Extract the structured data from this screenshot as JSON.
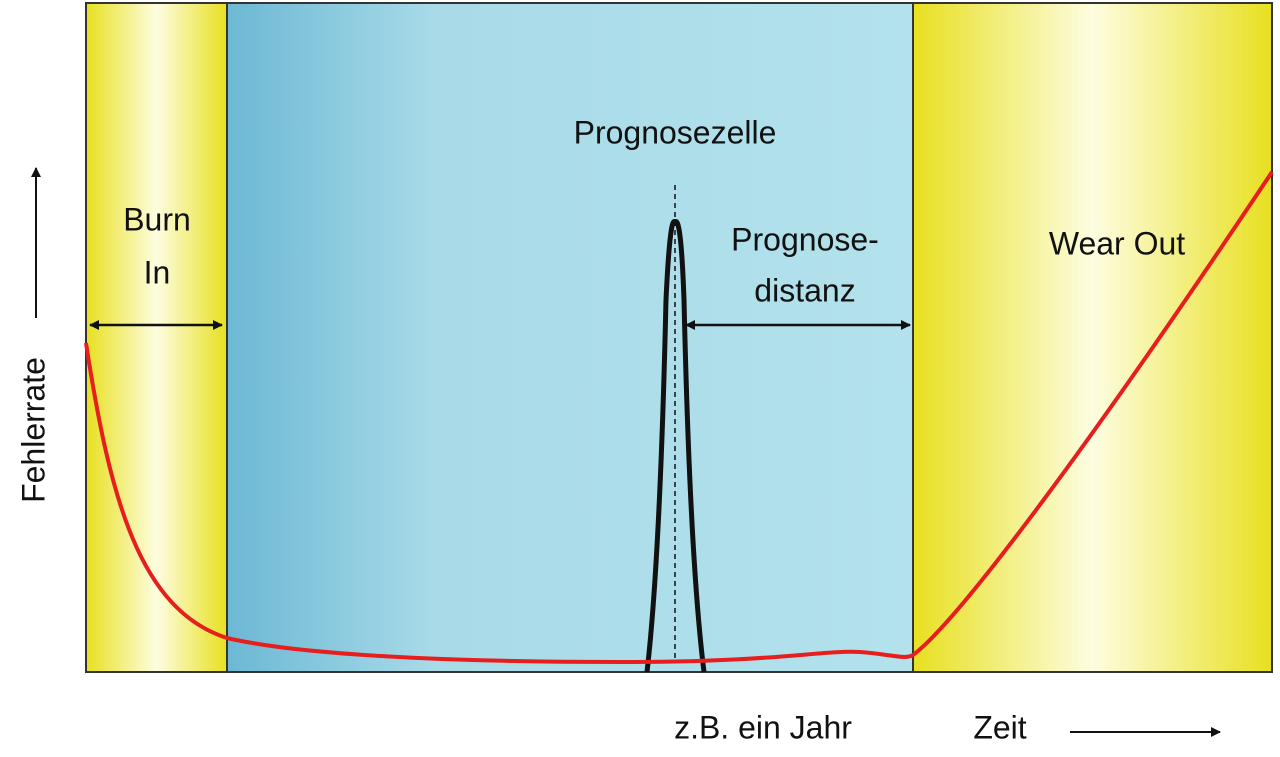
{
  "labels": {
    "burn_in": [
      "Burn",
      "In"
    ],
    "prognosezelle": "Prognosezelle",
    "prognosedistanz": [
      "Prognose-",
      "distanz"
    ],
    "wear_out": "Wear Out",
    "y_axis": "Fehlerrate",
    "example": "z.B. ein Jahr",
    "x_axis": "Zeit"
  }
}
